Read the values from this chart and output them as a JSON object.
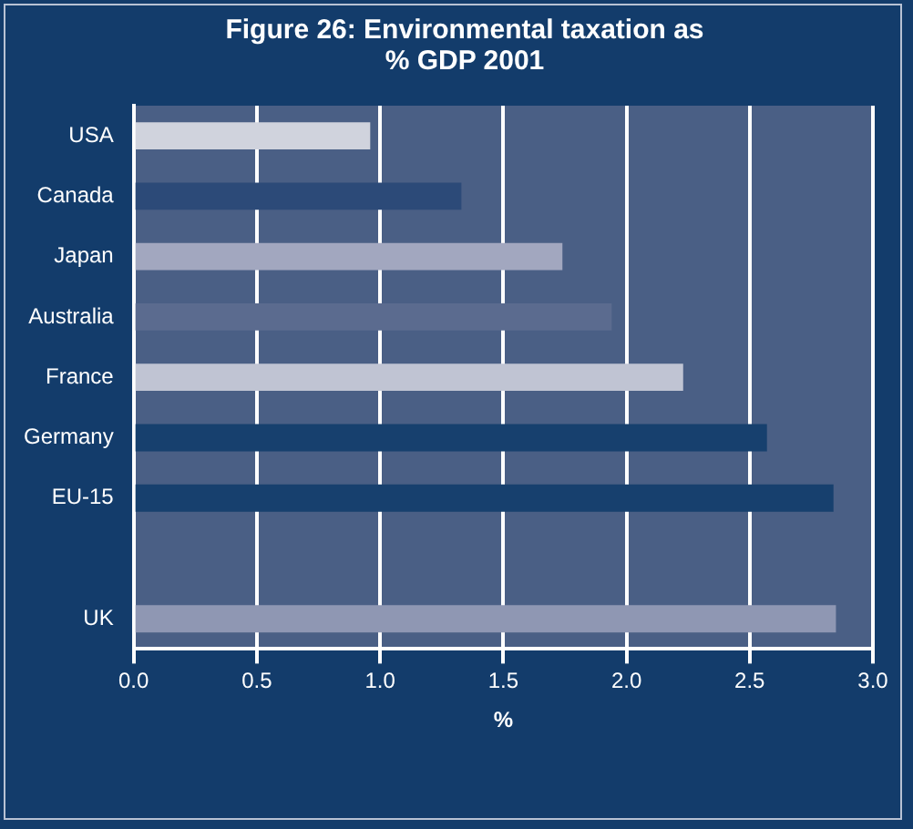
{
  "chart_data": {
    "type": "bar",
    "orientation": "horizontal",
    "title": "Figure 26: Environmental taxation as % GDP 2001",
    "xlabel": "%",
    "categories": [
      "USA",
      "Canada",
      "Japan",
      "Australia",
      "France",
      "Germany",
      "EU-15",
      null,
      "UK"
    ],
    "values": [
      0.96,
      1.33,
      1.74,
      1.94,
      2.23,
      2.57,
      2.84,
      null,
      2.85
    ],
    "colors": [
      "#d0d3dd",
      "#2c4a78",
      "#a2a7bf",
      "#5b6b8f",
      "#c0c4d3",
      "#17406e",
      "#17406e",
      "#4a5f85",
      "#8f97b3"
    ],
    "xlim": [
      0,
      3
    ],
    "xticks": [
      {
        "value": 0,
        "label": "0.0"
      },
      0.5,
      {
        "value": 1,
        "label": "1.0"
      },
      1.5,
      {
        "value": 2,
        "label": "2.0"
      },
      2.5,
      {
        "value": 3,
        "label": "3.0"
      }
    ],
    "grid": "x"
  }
}
